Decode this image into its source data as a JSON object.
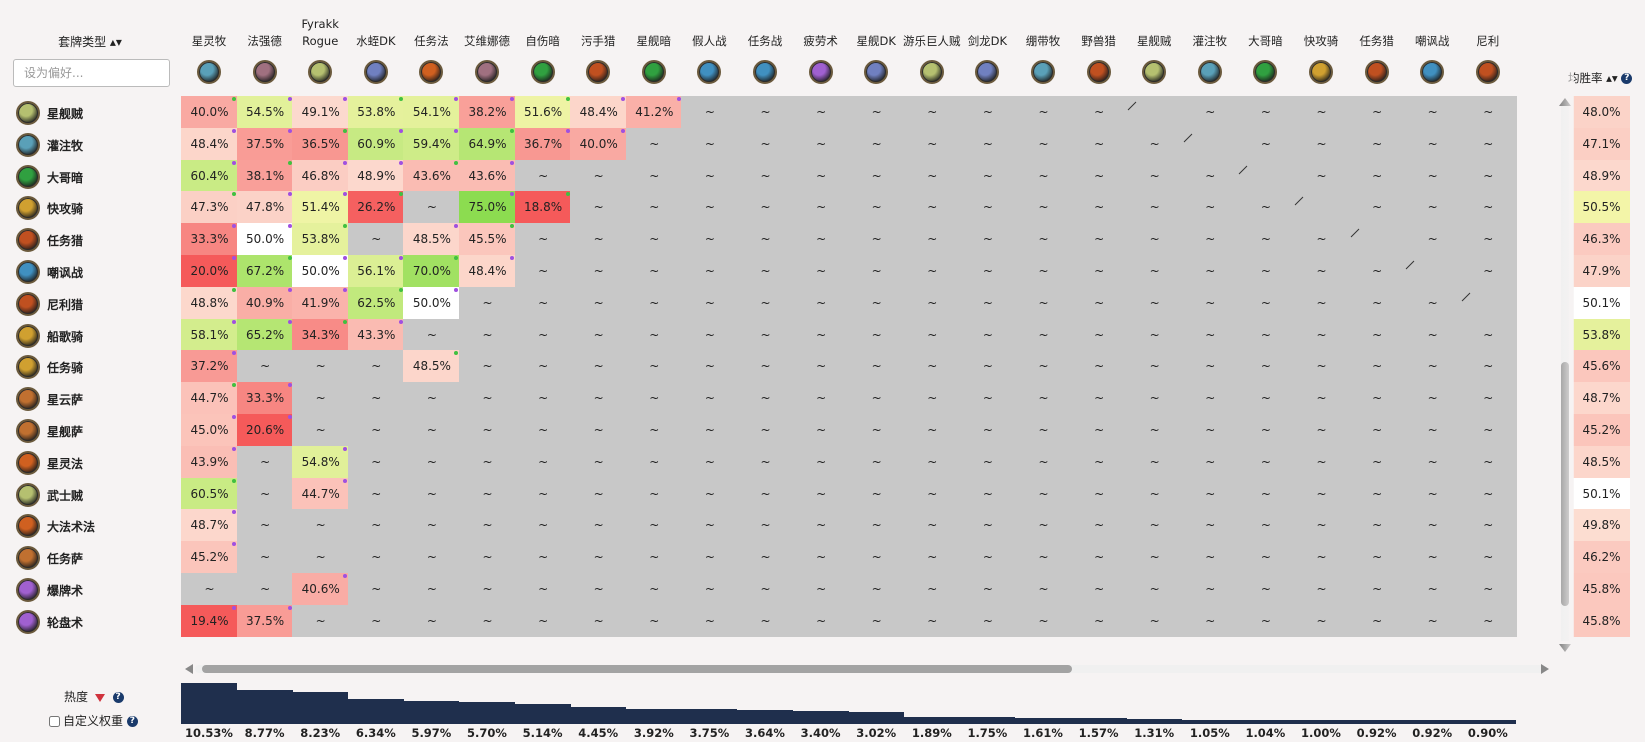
{
  "header": {
    "sort_label": "套牌类型 ▴▾",
    "search_placeholder": "设为偏好...",
    "winrate_label": "均胜率 ▴▾",
    "help_glyph": "?"
  },
  "columns": [
    {
      "label": "星灵牧",
      "icon": "priest-icon"
    },
    {
      "label": "法强德",
      "icon": "druid-icon"
    },
    {
      "label": "Fyrakk Rogue",
      "icon": "rogue-icon"
    },
    {
      "label": "水蛭DK",
      "icon": "death-knight-icon"
    },
    {
      "label": "任务法",
      "icon": "mage-icon"
    },
    {
      "label": "艾维娜德",
      "icon": "druid-icon"
    },
    {
      "label": "自伤暗",
      "icon": "warlock-icon"
    },
    {
      "label": "污手猎",
      "icon": "hunter-icon"
    },
    {
      "label": "星舰暗",
      "icon": "warlock-icon"
    },
    {
      "label": "假人战",
      "icon": "warrior-icon"
    },
    {
      "label": "任务战",
      "icon": "warrior-icon"
    },
    {
      "label": "疲劳术",
      "icon": "demon-hunter-icon"
    },
    {
      "label": "星舰DK",
      "icon": "death-knight-icon"
    },
    {
      "label": "游乐巨人贼",
      "icon": "rogue-icon"
    },
    {
      "label": "剑龙DK",
      "icon": "death-knight-icon"
    },
    {
      "label": "绷带牧",
      "icon": "priest-icon"
    },
    {
      "label": "野兽猎",
      "icon": "hunter-icon"
    },
    {
      "label": "星舰贼",
      "icon": "rogue-icon"
    },
    {
      "label": "灌注牧",
      "icon": "priest-icon"
    },
    {
      "label": "大哥暗",
      "icon": "warlock-icon"
    },
    {
      "label": "快攻骑",
      "icon": "paladin-icon"
    },
    {
      "label": "任务猎",
      "icon": "hunter-icon"
    },
    {
      "label": "嘲讽战",
      "icon": "warrior-icon"
    },
    {
      "label": "尼利",
      "icon": "hunter-icon"
    }
  ],
  "rows": [
    {
      "label": "星舰贼",
      "icon": "rogue-icon",
      "winrate": "48.0%"
    },
    {
      "label": "灌注牧",
      "icon": "priest-icon",
      "winrate": "47.1%"
    },
    {
      "label": "大哥暗",
      "icon": "warlock-icon",
      "winrate": "48.9%"
    },
    {
      "label": "快攻骑",
      "icon": "paladin-icon",
      "winrate": "50.5%"
    },
    {
      "label": "任务猎",
      "icon": "hunter-icon",
      "winrate": "46.3%"
    },
    {
      "label": "嘲讽战",
      "icon": "warrior-icon",
      "winrate": "47.9%"
    },
    {
      "label": "尼利猎",
      "icon": "hunter-icon",
      "winrate": "50.1%"
    },
    {
      "label": "船歌骑",
      "icon": "paladin-icon",
      "winrate": "53.8%"
    },
    {
      "label": "任务骑",
      "icon": "paladin-icon",
      "winrate": "45.6%"
    },
    {
      "label": "星云萨",
      "icon": "shaman-icon",
      "winrate": "48.7%"
    },
    {
      "label": "星舰萨",
      "icon": "shaman-icon",
      "winrate": "45.2%"
    },
    {
      "label": "星灵法",
      "icon": "mage-icon",
      "winrate": "48.5%"
    },
    {
      "label": "武士贼",
      "icon": "rogue-icon",
      "winrate": "50.1%"
    },
    {
      "label": "大法术法",
      "icon": "mage-icon",
      "winrate": "49.8%"
    },
    {
      "label": "任务萨",
      "icon": "shaman-icon",
      "winrate": "46.2%"
    },
    {
      "label": "爆牌术",
      "icon": "demon-hunter-icon",
      "winrate": "45.8%"
    },
    {
      "label": "轮盘术",
      "icon": "demon-hunter-icon",
      "winrate": "45.8%"
    }
  ],
  "cells": [
    [
      "40.0%",
      "54.5%",
      "49.1%",
      "53.8%",
      "54.1%",
      "38.2%",
      "51.6%",
      "48.4%",
      "41.2%",
      "~",
      "~",
      "~",
      "~",
      "~",
      "~",
      "~",
      "~",
      "/",
      "~",
      "~",
      "~",
      "~",
      "~",
      "~"
    ],
    [
      "48.4%",
      "37.5%",
      "36.5%",
      "60.9%",
      "59.4%",
      "64.9%",
      "36.7%",
      "40.0%",
      "~",
      "~",
      "~",
      "~",
      "~",
      "~",
      "~",
      "~",
      "~",
      "~",
      "/",
      "~",
      "~",
      "~",
      "~",
      "~"
    ],
    [
      "60.4%",
      "38.1%",
      "46.8%",
      "48.9%",
      "43.6%",
      "43.6%",
      "~",
      "~",
      "~",
      "~",
      "~",
      "~",
      "~",
      "~",
      "~",
      "~",
      "~",
      "~",
      "~",
      "/",
      "~",
      "~",
      "~",
      "~"
    ],
    [
      "47.3%",
      "47.8%",
      "51.4%",
      "26.2%",
      "~",
      "75.0%",
      "18.8%",
      "~",
      "~",
      "~",
      "~",
      "~",
      "~",
      "~",
      "~",
      "~",
      "~",
      "~",
      "~",
      "~",
      "/",
      "~",
      "~",
      "~"
    ],
    [
      "33.3%",
      "50.0%",
      "53.8%",
      "~",
      "48.5%",
      "45.5%",
      "~",
      "~",
      "~",
      "~",
      "~",
      "~",
      "~",
      "~",
      "~",
      "~",
      "~",
      "~",
      "~",
      "~",
      "~",
      "/",
      "~",
      "~"
    ],
    [
      "20.0%",
      "67.2%",
      "50.0%",
      "56.1%",
      "70.0%",
      "48.4%",
      "~",
      "~",
      "~",
      "~",
      "~",
      "~",
      "~",
      "~",
      "~",
      "~",
      "~",
      "~",
      "~",
      "~",
      "~",
      "~",
      "/",
      "~"
    ],
    [
      "48.8%",
      "40.9%",
      "41.9%",
      "62.5%",
      "50.0%",
      "~",
      "~",
      "~",
      "~",
      "~",
      "~",
      "~",
      "~",
      "~",
      "~",
      "~",
      "~",
      "~",
      "~",
      "~",
      "~",
      "~",
      "~",
      "/"
    ],
    [
      "58.1%",
      "65.2%",
      "34.3%",
      "43.3%",
      "~",
      "~",
      "~",
      "~",
      "~",
      "~",
      "~",
      "~",
      "~",
      "~",
      "~",
      "~",
      "~",
      "~",
      "~",
      "~",
      "~",
      "~",
      "~",
      "~"
    ],
    [
      "37.2%",
      "~",
      "~",
      "~",
      "48.5%",
      "~",
      "~",
      "~",
      "~",
      "~",
      "~",
      "~",
      "~",
      "~",
      "~",
      "~",
      "~",
      "~",
      "~",
      "~",
      "~",
      "~",
      "~",
      "~"
    ],
    [
      "44.7%",
      "33.3%",
      "~",
      "~",
      "~",
      "~",
      "~",
      "~",
      "~",
      "~",
      "~",
      "~",
      "~",
      "~",
      "~",
      "~",
      "~",
      "~",
      "~",
      "~",
      "~",
      "~",
      "~",
      "~"
    ],
    [
      "45.0%",
      "20.6%",
      "~",
      "~",
      "~",
      "~",
      "~",
      "~",
      "~",
      "~",
      "~",
      "~",
      "~",
      "~",
      "~",
      "~",
      "~",
      "~",
      "~",
      "~",
      "~",
      "~",
      "~",
      "~"
    ],
    [
      "43.9%",
      "~",
      "54.8%",
      "~",
      "~",
      "~",
      "~",
      "~",
      "~",
      "~",
      "~",
      "~",
      "~",
      "~",
      "~",
      "~",
      "~",
      "~",
      "~",
      "~",
      "~",
      "~",
      "~",
      "~"
    ],
    [
      "60.5%",
      "~",
      "44.7%",
      "~",
      "~",
      "~",
      "~",
      "~",
      "~",
      "~",
      "~",
      "~",
      "~",
      "~",
      "~",
      "~",
      "~",
      "~",
      "~",
      "~",
      "~",
      "~",
      "~",
      "~"
    ],
    [
      "48.7%",
      "~",
      "~",
      "~",
      "~",
      "~",
      "~",
      "~",
      "~",
      "~",
      "~",
      "~",
      "~",
      "~",
      "~",
      "~",
      "~",
      "~",
      "~",
      "~",
      "~",
      "~",
      "~",
      "~"
    ],
    [
      "45.2%",
      "~",
      "~",
      "~",
      "~",
      "~",
      "~",
      "~",
      "~",
      "~",
      "~",
      "~",
      "~",
      "~",
      "~",
      "~",
      "~",
      "~",
      "~",
      "~",
      "~",
      "~",
      "~",
      "~"
    ],
    [
      "~",
      "~",
      "40.6%",
      "~",
      "~",
      "~",
      "~",
      "~",
      "~",
      "~",
      "~",
      "~",
      "~",
      "~",
      "~",
      "~",
      "~",
      "~",
      "~",
      "~",
      "~",
      "~",
      "~",
      "~"
    ],
    [
      "19.4%",
      "37.5%",
      "~",
      "~",
      "~",
      "~",
      "~",
      "~",
      "~",
      "~",
      "~",
      "~",
      "~",
      "~",
      "~",
      "~",
      "~",
      "~",
      "~",
      "~",
      "~",
      "~",
      "~",
      "~"
    ]
  ],
  "popularity": {
    "label": "热度",
    "custom_weight_label": "自定义权重",
    "values": [
      "10.53%",
      "8.77%",
      "8.23%",
      "6.34%",
      "5.97%",
      "5.70%",
      "5.14%",
      "4.45%",
      "3.92%",
      "3.75%",
      "3.64%",
      "3.40%",
      "3.02%",
      "1.89%",
      "1.75%",
      "1.61%",
      "1.57%",
      "1.31%",
      "1.05%",
      "1.04%",
      "1.00%",
      "0.92%",
      "0.92%",
      "0.90%"
    ],
    "numbers": [
      10.53,
      8.77,
      8.23,
      6.34,
      5.97,
      5.7,
      5.14,
      4.45,
      3.92,
      3.75,
      3.64,
      3.4,
      3.02,
      1.89,
      1.75,
      1.61,
      1.57,
      1.31,
      1.05,
      1.04,
      1.0,
      0.92,
      0.92,
      0.9
    ]
  },
  "class_colors": {
    "priest-icon": "#5aa0b8",
    "druid-icon": "#a07080",
    "rogue-icon": "#b5c070",
    "death-knight-icon": "#7080c0",
    "mage-icon": "#d06020",
    "warlock-icon": "#30a040",
    "hunter-icon": "#c05020",
    "warrior-icon": "#4090c0",
    "demon-hunter-icon": "#a060d0",
    "paladin-icon": "#d0a030",
    "shaman-icon": "#c07030"
  },
  "colors": {
    "accent": "#1f2f4d",
    "empty_cell": "#c8c8c8",
    "dot_purple": "#a050e0",
    "dot_green": "#40c040"
  }
}
